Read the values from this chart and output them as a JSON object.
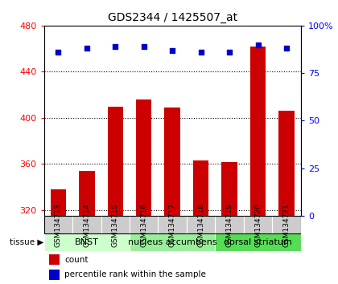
{
  "title": "GDS2344 / 1425507_at",
  "samples": [
    "GSM134713",
    "GSM134714",
    "GSM134715",
    "GSM134716",
    "GSM134717",
    "GSM134718",
    "GSM134719",
    "GSM134720",
    "GSM134721"
  ],
  "counts": [
    338,
    354,
    410,
    416,
    409,
    363,
    362,
    462,
    406
  ],
  "percentiles": [
    86,
    88,
    89,
    89,
    87,
    86,
    86,
    90,
    88
  ],
  "ylim_left": [
    315,
    480
  ],
  "ylim_right": [
    0,
    100
  ],
  "yticks_left": [
    320,
    360,
    400,
    440,
    480
  ],
  "yticks_right": [
    0,
    25,
    50,
    75,
    100
  ],
  "bar_color": "#cc0000",
  "dot_color": "#0000cc",
  "bar_bottom": 315,
  "tissue_groups": [
    {
      "label": "BNST",
      "start": 0,
      "end": 3
    },
    {
      "label": "nucleus accumbens",
      "start": 3,
      "end": 6
    },
    {
      "label": "dorsal striatum",
      "start": 6,
      "end": 9
    }
  ],
  "tissue_colors": [
    "#ccffcc",
    "#99ee99",
    "#55dd55"
  ],
  "sample_box_color": "#cccccc",
  "legend_count_label": "count",
  "legend_pct_label": "percentile rank within the sample",
  "title_fontsize": 10,
  "tick_fontsize": 8,
  "sample_fontsize": 6.5
}
